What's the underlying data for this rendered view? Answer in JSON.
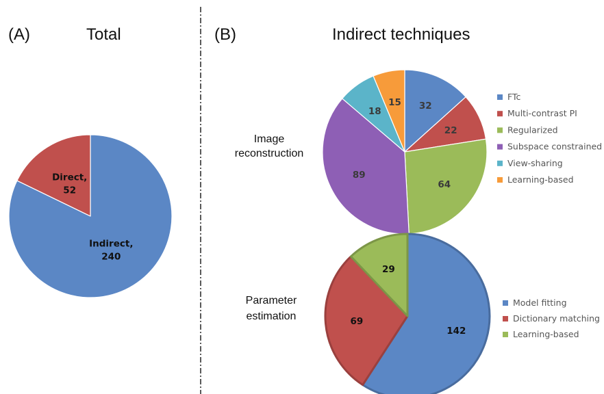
{
  "panels": {
    "a": {
      "letter": "(A)",
      "title": "Total"
    },
    "b": {
      "letter": "(B)",
      "title": "Indirect techniques"
    }
  },
  "row_labels": {
    "image_reconstruction": [
      "Image",
      "reconstruction"
    ],
    "parameter_estimation": [
      "Parameter",
      "estimation"
    ]
  },
  "chart_data": [
    {
      "id": "total",
      "type": "pie",
      "title": "Total",
      "start_angle_deg": 0,
      "slices": [
        {
          "name": "Indirect",
          "value": 240,
          "label": [
            "Indirect,",
            "240"
          ],
          "color": "#5B87C5",
          "label_color": "#111111"
        },
        {
          "name": "Direct",
          "value": 52,
          "label": [
            "Direct,",
            "52"
          ],
          "color": "#C0504D",
          "label_color": "#111111"
        }
      ],
      "legend": null
    },
    {
      "id": "image_reconstruction",
      "type": "pie",
      "title": "Indirect techniques",
      "start_angle_deg": 0,
      "slices": [
        {
          "name": "FTc",
          "value": 32,
          "label": [
            "32"
          ],
          "color": "#5B87C5",
          "label_color": "#3A3A3A"
        },
        {
          "name": "Multi-contrast PI",
          "value": 22,
          "label": [
            "22"
          ],
          "color": "#C0504D",
          "label_color": "#3A3A3A"
        },
        {
          "name": "Regularized",
          "value": 64,
          "label": [
            "64"
          ],
          "color": "#9BBB59",
          "label_color": "#3A3A3A"
        },
        {
          "name": "Subspace constrained",
          "value": 89,
          "label": [
            "89"
          ],
          "color": "#8E5FB5",
          "label_color": "#3A3A3A"
        },
        {
          "name": "View-sharing",
          "value": 18,
          "label": [
            "18"
          ],
          "color": "#5BB4C9",
          "label_color": "#3A3A3A"
        },
        {
          "name": "Learning-based",
          "value": 15,
          "label": [
            "15"
          ],
          "color": "#F79B3A",
          "label_color": "#3A3A3A"
        }
      ],
      "legend": "right"
    },
    {
      "id": "parameter_estimation",
      "type": "pie",
      "title": "",
      "start_angle_deg": 0,
      "slices": [
        {
          "name": "Model fitting",
          "value": 142,
          "label": [
            "142"
          ],
          "color": "#5B87C5",
          "label_color": "#111111"
        },
        {
          "name": "Dictionary matching",
          "value": 69,
          "label": [
            "69"
          ],
          "color": "#C0504D",
          "label_color": "#111111"
        },
        {
          "name": "Learning-based",
          "value": 29,
          "label": [
            "29"
          ],
          "color": "#9BBB59",
          "label_color": "#111111"
        }
      ],
      "legend": "right"
    }
  ]
}
